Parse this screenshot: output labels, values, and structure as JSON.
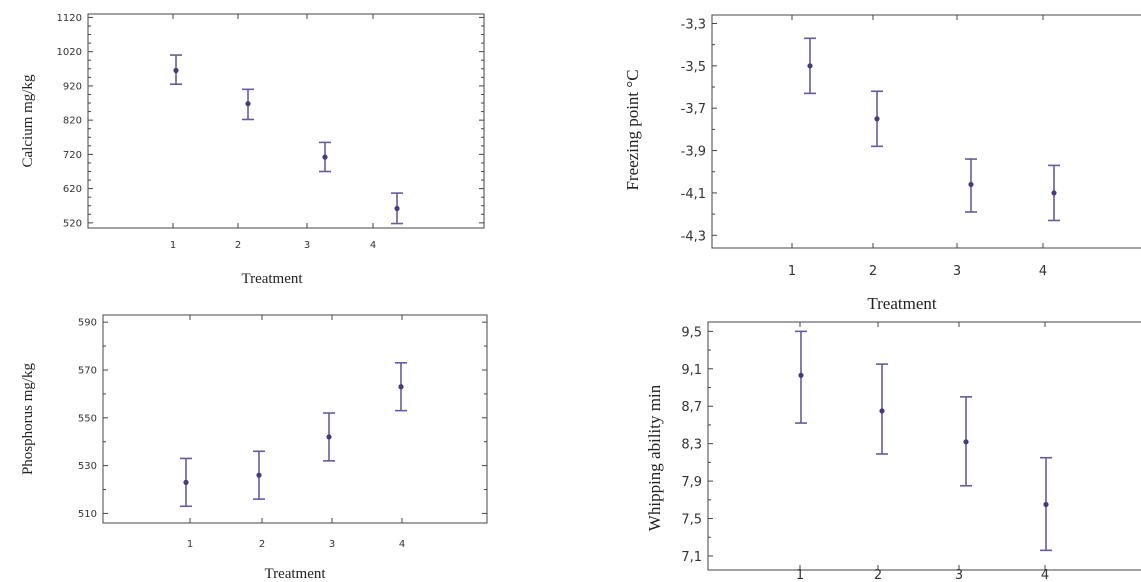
{
  "chart_data": [
    {
      "type": "errorbar",
      "xlabel": "Treatment",
      "ylabel": "Calcium mg/kg",
      "categories": [
        "1",
        "2",
        "3",
        "4"
      ],
      "yticks": [
        "520",
        "620",
        "720",
        "820",
        "920",
        "1020",
        "1120"
      ],
      "ylim": [
        505,
        1130
      ],
      "series": [
        {
          "values": [
            965,
            868,
            712,
            562
          ],
          "lower": [
            925,
            822,
            670,
            518
          ],
          "upper": [
            1010,
            910,
            755,
            607
          ]
        }
      ]
    },
    {
      "type": "errorbar",
      "xlabel": "Treatment",
      "ylabel": "Freezing point °C",
      "categories": [
        "1",
        "2",
        "3",
        "4"
      ],
      "yticks": [
        "-3,3",
        "-3,5",
        "-3,7",
        "-3,9",
        "-4,1",
        "-4,3"
      ],
      "ylim": [
        -4.36,
        -3.26
      ],
      "series": [
        {
          "values": [
            -3.5,
            -3.75,
            -4.06,
            -4.1
          ],
          "lower": [
            -3.63,
            -3.88,
            -4.19,
            -4.23
          ],
          "upper": [
            -3.37,
            -3.62,
            -3.94,
            -3.97
          ]
        }
      ]
    },
    {
      "type": "errorbar",
      "xlabel": "Treatment",
      "ylabel": "Phosphorus mg/kg",
      "categories": [
        "1",
        "2",
        "3",
        "4"
      ],
      "yticks": [
        "510",
        "530",
        "550",
        "570",
        "590"
      ],
      "ylim": [
        506,
        593
      ],
      "series": [
        {
          "values": [
            523,
            526,
            542,
            563
          ],
          "lower": [
            513,
            516,
            532,
            553
          ],
          "upper": [
            533,
            536,
            552,
            573
          ]
        }
      ]
    },
    {
      "type": "errorbar",
      "xlabel": "",
      "ylabel": "Whipping ability min",
      "categories": [
        "1",
        "2",
        "3",
        "4"
      ],
      "yticks": [
        "7,1",
        "7,5",
        "7,9",
        "8,3",
        "8,7",
        "9,1",
        "9,5"
      ],
      "ylim": [
        6.95,
        9.6
      ],
      "series": [
        {
          "values": [
            9.03,
            8.65,
            8.32,
            7.65
          ],
          "lower": [
            8.52,
            8.19,
            7.85,
            7.16
          ],
          "upper": [
            9.5,
            9.15,
            8.8,
            8.15
          ]
        }
      ]
    }
  ]
}
